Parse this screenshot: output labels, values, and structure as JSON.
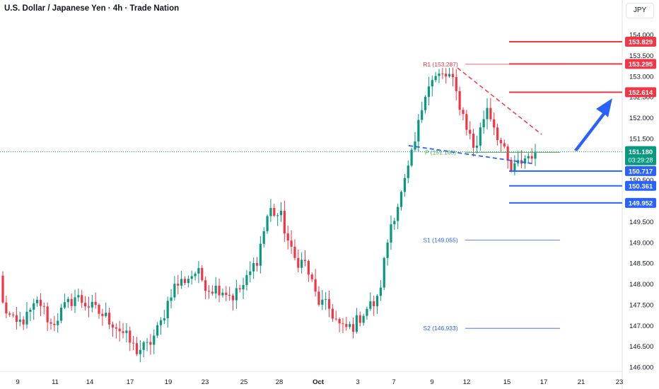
{
  "header": {
    "title": "U.S. Dollar / Japanese Yen · 4h · Trade Nation",
    "currency_button": "JPY"
  },
  "colors": {
    "up": "#089981",
    "down": "#f23645",
    "resistance": "#f23645",
    "support": "#2962ff",
    "pivot": "#4caf50",
    "arrow": "#2962ff"
  },
  "chart_data": {
    "type": "candlestick",
    "symbol": "USDJPY",
    "timeframe": "4h",
    "ylim": [
      146.0,
      154.0
    ],
    "y_ticks": [
      "146.000",
      "146.500",
      "147.000",
      "147.500",
      "148.000",
      "148.500",
      "149.000",
      "149.500",
      "150.000",
      "150.500",
      "151.000",
      "151.500",
      "152.000",
      "152.500",
      "153.000",
      "153.500",
      "154.000"
    ],
    "x_tick_labels": [
      "9",
      "11",
      "14",
      "17",
      "19",
      "23",
      "25",
      "28",
      "Oct",
      "3",
      "7",
      "9",
      "12",
      "15",
      "17",
      "21",
      "23"
    ],
    "anchor_closes": [
      147.5,
      147.0,
      147.2,
      147.6,
      147.0,
      147.4,
      147.7,
      147.5,
      147.3,
      147.1,
      146.8,
      146.4,
      146.5,
      147.0,
      147.9,
      148.1,
      148.3,
      147.9,
      147.9,
      147.7,
      148.0,
      148.6,
      149.8,
      149.6,
      148.6,
      148.5,
      147.6,
      147.4,
      146.9,
      147.0,
      147.4,
      147.6,
      149.4,
      150.2,
      151.3,
      152.8,
      153.0,
      153.0,
      152.1,
      151.2,
      152.3,
      151.5,
      150.7,
      151.0,
      151.2
    ],
    "last_price": "151.180",
    "countdown": "03:29:28",
    "pivots": [
      {
        "label": "R1 (153.287)",
        "value": 153.287
      },
      {
        "label": "P (151.165)",
        "value": 151.165
      },
      {
        "label": "S1 (149.055)",
        "value": 149.055
      },
      {
        "label": "S2 (146.933)",
        "value": 146.933
      }
    ],
    "resistance_levels": [
      153.829,
      153.295,
      152.614
    ],
    "support_levels": [
      150.717,
      150.361,
      149.952
    ],
    "price_tags": {
      "r1": "153.829",
      "r2": "153.295",
      "r3": "152.614",
      "s1": "150.717",
      "s2": "150.361",
      "s3": "149.952"
    },
    "trendlines": [
      {
        "name": "descending resistance",
        "from": 153.2,
        "to": 151.6,
        "style": "dashed",
        "color": "#f23645"
      },
      {
        "name": "lower support",
        "from": 151.33,
        "to": 150.9,
        "style": "dashed",
        "color": "#2962ff"
      }
    ],
    "arrow": {
      "direction": "up",
      "target": "152.614"
    }
  }
}
